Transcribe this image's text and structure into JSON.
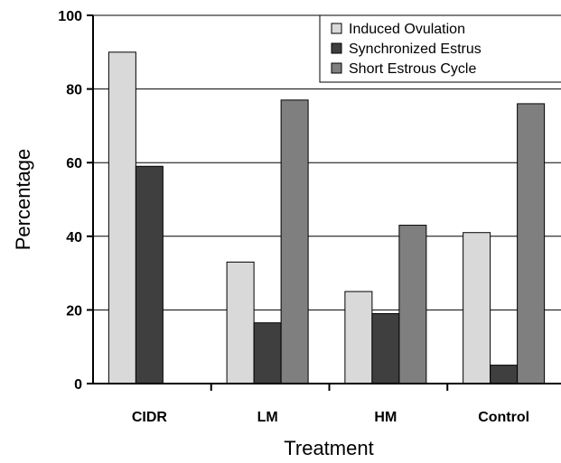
{
  "chart_data": {
    "type": "bar",
    "title": "",
    "xlabel": "Treatment",
    "ylabel": "Percentage",
    "categories": [
      "CIDR",
      "LM",
      "HM",
      "Control"
    ],
    "series": [
      {
        "name": "Induced Ovulation",
        "color": "#d9d9d9",
        "values": [
          90,
          33,
          25,
          41
        ]
      },
      {
        "name": "Synchronized Estrus",
        "color": "#3f3f3f",
        "values": [
          59,
          16.5,
          19,
          5
        ]
      },
      {
        "name": "Short Estrous Cycle",
        "color": "#7f7f7f",
        "values": [
          0,
          77,
          43,
          76
        ]
      }
    ],
    "ylim": [
      0,
      100
    ],
    "yticks": [
      0,
      20,
      40,
      60,
      80,
      100
    ],
    "grid": "horizontal",
    "legend_position": "top-right"
  }
}
